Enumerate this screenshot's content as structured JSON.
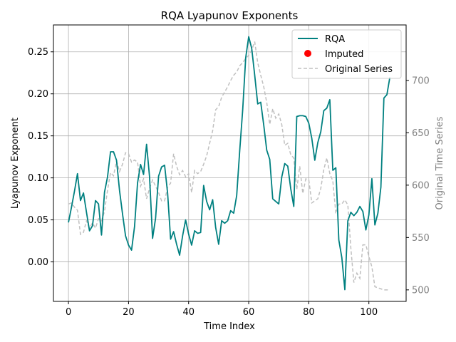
{
  "chart_data": {
    "type": "line",
    "title": "RQA Lyapunov Exponents",
    "xlabel": "Time Index",
    "ylabel": "Lyapunov Exponent",
    "y2label": "Original Time Series",
    "xlim": [
      -5,
      112.4
    ],
    "ylim": [
      -0.047,
      0.282
    ],
    "y2lim": [
      489,
      753
    ],
    "xticks": [
      0,
      20,
      40,
      60,
      80,
      100
    ],
    "yticks": [
      0.0,
      0.05,
      0.1,
      0.15,
      0.2,
      0.25
    ],
    "ytick_labels": [
      "0.00",
      "0.05",
      "0.10",
      "0.15",
      "0.20",
      "0.25"
    ],
    "y2ticks": [
      500,
      550,
      600,
      650,
      700
    ],
    "grid": true,
    "legend_position": "upper right",
    "legend": [
      "RQA",
      "Imputed",
      "Original Series"
    ],
    "colors": {
      "rqa": "#008080",
      "imputed": "#ff0000",
      "original": "#c0c0c0"
    },
    "series": [
      {
        "name": "RQA",
        "axis": "left",
        "x": [
          0,
          1,
          2,
          3,
          4,
          5,
          6,
          7,
          8,
          9,
          10,
          11,
          12,
          13,
          14,
          15,
          16,
          17,
          18,
          19,
          20,
          21,
          22,
          23,
          24,
          25,
          26,
          27,
          28,
          29,
          30,
          31,
          32,
          33,
          34,
          35,
          36,
          37,
          38,
          39,
          40,
          41,
          42,
          43,
          44,
          45,
          46,
          47,
          48,
          49,
          50,
          51,
          52,
          53,
          54,
          55,
          56,
          57,
          58,
          59,
          60,
          61,
          62,
          63,
          64,
          65,
          66,
          67,
          68,
          69,
          70,
          71,
          72,
          73,
          74,
          75,
          76,
          77,
          78,
          79,
          80,
          81,
          82,
          83,
          84,
          85,
          86,
          87,
          88,
          89,
          90,
          91,
          92,
          93,
          94,
          95,
          96,
          97,
          98,
          99,
          100,
          101,
          102,
          103,
          104,
          105,
          106,
          107
        ],
        "values": [
          0.047,
          0.065,
          0.084,
          0.105,
          0.073,
          0.082,
          0.059,
          0.037,
          0.043,
          0.073,
          0.069,
          0.032,
          0.083,
          0.101,
          0.131,
          0.131,
          0.121,
          0.085,
          0.057,
          0.031,
          0.02,
          0.014,
          0.042,
          0.094,
          0.116,
          0.104,
          0.14,
          0.101,
          0.028,
          0.052,
          0.102,
          0.113,
          0.115,
          0.082,
          0.027,
          0.036,
          0.021,
          0.008,
          0.031,
          0.05,
          0.033,
          0.02,
          0.037,
          0.034,
          0.035,
          0.091,
          0.072,
          0.062,
          0.074,
          0.041,
          0.021,
          0.049,
          0.046,
          0.049,
          0.061,
          0.058,
          0.079,
          0.132,
          0.181,
          0.243,
          0.268,
          0.254,
          0.222,
          0.188,
          0.19,
          0.163,
          0.133,
          0.122,
          0.075,
          0.072,
          0.069,
          0.101,
          0.117,
          0.114,
          0.087,
          0.066,
          0.173,
          0.174,
          0.174,
          0.173,
          0.165,
          0.147,
          0.121,
          0.142,
          0.155,
          0.18,
          0.183,
          0.193,
          0.109,
          0.112,
          0.026,
          0.005,
          -0.033,
          0.049,
          0.059,
          0.055,
          0.059,
          0.066,
          0.06,
          0.038,
          0.056,
          0.099,
          0.044,
          0.058,
          0.089,
          0.195,
          0.199,
          0.22
        ]
      },
      {
        "name": "Imputed",
        "axis": "left",
        "x": [],
        "values": []
      },
      {
        "name": "Original Series",
        "axis": "right",
        "x": [
          0,
          1,
          2,
          3,
          4,
          5,
          6,
          7,
          8,
          9,
          10,
          11,
          12,
          13,
          14,
          15,
          16,
          17,
          18,
          19,
          20,
          21,
          22,
          23,
          24,
          25,
          26,
          27,
          28,
          29,
          30,
          31,
          32,
          33,
          34,
          35,
          36,
          37,
          38,
          39,
          40,
          41,
          42,
          43,
          44,
          45,
          46,
          47,
          48,
          49,
          50,
          51,
          52,
          53,
          54,
          55,
          56,
          57,
          58,
          59,
          60,
          61,
          62,
          63,
          64,
          65,
          66,
          67,
          68,
          69,
          70,
          71,
          72,
          73,
          74,
          75,
          76,
          77,
          78,
          79,
          80,
          81,
          82,
          83,
          84,
          85,
          86,
          87,
          88,
          89,
          90,
          91,
          92,
          93,
          94,
          95,
          96,
          97,
          98,
          99,
          100,
          101,
          102,
          103,
          104,
          105,
          106,
          107
        ],
        "values": [
          582,
          583,
          579,
          576,
          553,
          555,
          566,
          559,
          564,
          559,
          568,
          566,
          575,
          595,
          612,
          609,
          623,
          613,
          620,
          631,
          630,
          622,
          624,
          622,
          599,
          606,
          587,
          597,
          605,
          599,
          593,
          585,
          585,
          598,
          602,
          630,
          618,
          610,
          614,
          608,
          611,
          593,
          614,
          611,
          613,
          620,
          628,
          640,
          652,
          672,
          675,
          684,
          689,
          694,
          700,
          705,
          708,
          714,
          717,
          721,
          724,
          729,
          737,
          717,
          705,
          694,
          679,
          658,
          673,
          664,
          668,
          658,
          638,
          640,
          629,
          626,
          596,
          618,
          592,
          606,
          605,
          583,
          585,
          587,
          597,
          615,
          626,
          611,
          604,
          573,
          582,
          582,
          586,
          581,
          540,
          507,
          516,
          511,
          543,
          543,
          532,
          522,
          503,
          502,
          501,
          500,
          500,
          500
        ]
      }
    ]
  }
}
